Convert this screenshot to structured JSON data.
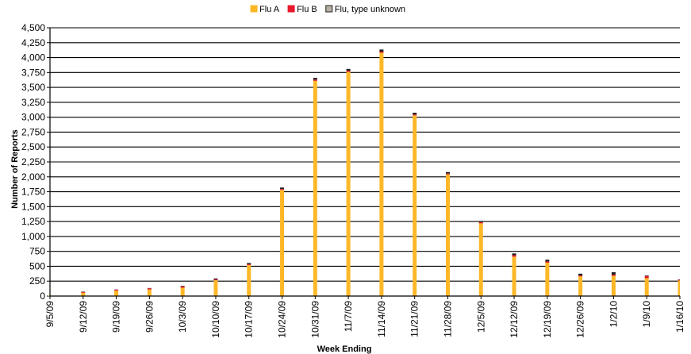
{
  "chart_data": {
    "type": "bar",
    "stacked": true,
    "xlabel": "Week Ending",
    "ylabel": "Number of Reports",
    "ylim": [
      0,
      4500
    ],
    "ytick_step": 250,
    "grid": true,
    "legend_position": "top",
    "categories": [
      "9/5/09",
      "9/12/09",
      "9/19/09",
      "9/26/09",
      "10/3/09",
      "10/10/09",
      "10/17/09",
      "10/24/09",
      "10/31/09",
      "11/7/09",
      "11/14/09",
      "11/21/09",
      "11/28/09",
      "12/5/09",
      "12/12/09",
      "12/19/09",
      "12/26/09",
      "1/2/10",
      "1/9/10",
      "1/16/10"
    ],
    "series": [
      {
        "name": "Flu A",
        "color": "#FDB827",
        "values": [
          5,
          55,
          90,
          110,
          140,
          265,
          520,
          1780,
          3610,
          3760,
          4080,
          3030,
          2040,
          1220,
          660,
          560,
          330,
          340,
          300,
          260
        ]
      },
      {
        "name": "Flu B",
        "color": "#E8192C",
        "values": [
          0,
          15,
          15,
          20,
          20,
          15,
          15,
          15,
          20,
          20,
          20,
          15,
          15,
          20,
          25,
          20,
          15,
          20,
          35,
          15
        ]
      },
      {
        "name": "Flu, type unknown",
        "color": "#231F20",
        "values": [
          0,
          5,
          5,
          5,
          10,
          15,
          20,
          25,
          30,
          30,
          35,
          30,
          25,
          20,
          30,
          30,
          30,
          40,
          10,
          5
        ]
      }
    ],
    "legend": [
      {
        "label": "Flu A",
        "color": "#FDB827",
        "border": "#FDB827"
      },
      {
        "label": "Flu B",
        "color": "#E8192C",
        "border": "#E8192C"
      },
      {
        "label": "Flu, type unknown",
        "color": "#B7B1A3",
        "border": "#231F20"
      }
    ]
  }
}
